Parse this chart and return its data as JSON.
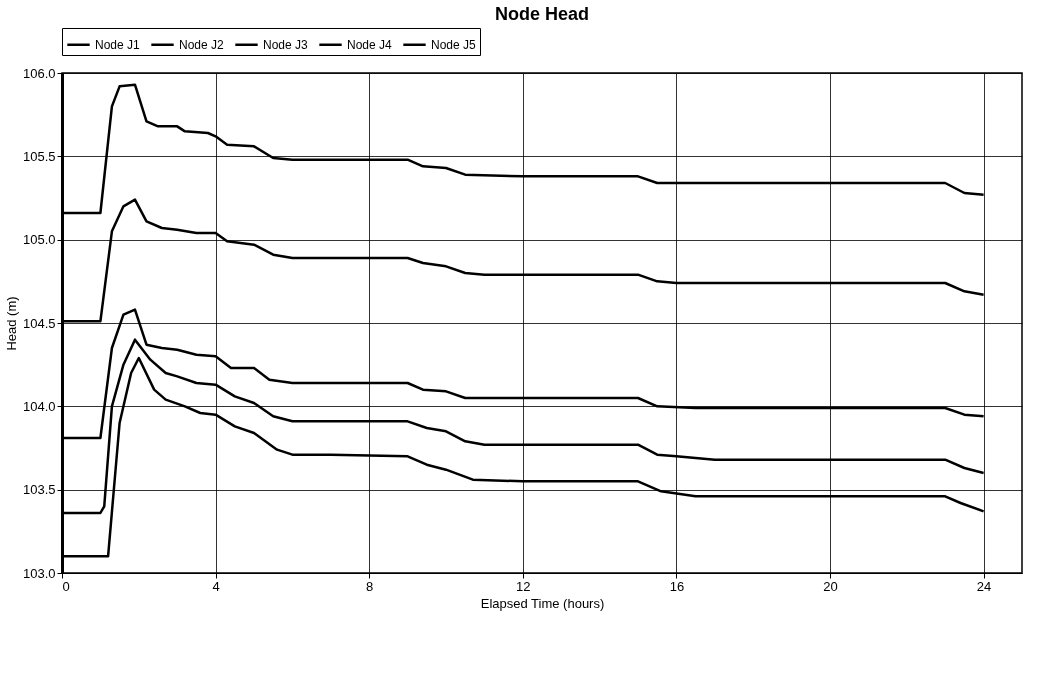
{
  "chart_data": {
    "type": "line",
    "title": "Node Head",
    "xlabel": "Elapsed Time (hours)",
    "ylabel": "Head (m)",
    "xlim": [
      0,
      25
    ],
    "xticks": [
      0,
      4,
      8,
      12,
      16,
      20,
      24
    ],
    "ylim": [
      103,
      106
    ],
    "yticks": [
      {
        "value": 103,
        "label": "103.0"
      },
      103.5,
      {
        "value": 104,
        "label": "104.0"
      },
      104.5,
      {
        "value": 105,
        "label": "105.0"
      },
      105.5,
      {
        "value": 106,
        "label": "106.0"
      }
    ],
    "grid": true,
    "legend": "top",
    "marker": "none",
    "line_style": "solid",
    "series": [
      {
        "name": "Node J1",
        "color": "#000000",
        "x": [
          0,
          1.0,
          1.3,
          1.5,
          1.9,
          2.2,
          2.5,
          3.0,
          3.2,
          3.8,
          4.0,
          4.3,
          5.0,
          5.5,
          6,
          9.0,
          9.4,
          10.0,
          10.5,
          12,
          15.0,
          15.5,
          23.0,
          23.5,
          24
        ],
        "values": [
          105.16,
          105.16,
          105.8,
          105.92,
          105.93,
          105.71,
          105.68,
          105.68,
          105.65,
          105.64,
          105.62,
          105.57,
          105.56,
          105.49,
          105.48,
          105.48,
          105.44,
          105.43,
          105.39,
          105.38,
          105.38,
          105.34,
          105.34,
          105.28,
          105.27
        ]
      },
      {
        "name": "Node J2",
        "color": "#000000",
        "x": [
          0,
          1.0,
          1.3,
          1.6,
          1.9,
          2.2,
          2.6,
          3.0,
          3.5,
          4.0,
          4.3,
          5.0,
          5.5,
          6.0,
          9.0,
          9.4,
          10.0,
          10.5,
          11,
          15.0,
          15.5,
          16,
          23.0,
          23.5,
          24
        ],
        "values": [
          104.51,
          104.51,
          105.05,
          105.2,
          105.24,
          105.11,
          105.07,
          105.06,
          105.04,
          105.04,
          104.99,
          104.97,
          104.91,
          104.89,
          104.89,
          104.86,
          104.84,
          104.8,
          104.79,
          104.79,
          104.75,
          104.74,
          104.74,
          104.69,
          104.67
        ]
      },
      {
        "name": "Node J3",
        "color": "#000000",
        "x": [
          0,
          1.0,
          1.3,
          1.6,
          1.9,
          2.2,
          2.6,
          3.0,
          3.5,
          4.0,
          4.4,
          5.0,
          5.4,
          6,
          9.0,
          9.4,
          10.0,
          10.5,
          15.0,
          15.5,
          16.5,
          23.0,
          23.5,
          24
        ],
        "values": [
          103.81,
          103.81,
          104.35,
          104.55,
          104.58,
          104.37,
          104.35,
          104.34,
          104.31,
          104.3,
          104.23,
          104.23,
          104.16,
          104.14,
          104.14,
          104.1,
          104.09,
          104.05,
          104.05,
          104.0,
          103.99,
          103.99,
          103.95,
          103.94
        ]
      },
      {
        "name": "Node J4",
        "color": "#000000",
        "x": [
          0,
          1.0,
          1.1,
          1.3,
          1.6,
          1.9,
          2.3,
          2.7,
          3.0,
          3.5,
          4.0,
          4.5,
          5.0,
          5.5,
          6.0,
          9.0,
          9.5,
          10.0,
          10.5,
          11,
          15.0,
          15.5,
          16,
          17,
          23.0,
          23.5,
          24
        ],
        "values": [
          103.36,
          103.36,
          103.4,
          104.0,
          104.25,
          104.4,
          104.28,
          104.2,
          104.18,
          104.14,
          104.13,
          104.06,
          104.02,
          103.94,
          103.91,
          103.91,
          103.87,
          103.85,
          103.79,
          103.77,
          103.77,
          103.71,
          103.7,
          103.68,
          103.68,
          103.63,
          103.6
        ]
      },
      {
        "name": "Node J5",
        "color": "#000000",
        "x": [
          0,
          1.2,
          1.5,
          1.8,
          2.0,
          2.4,
          2.7,
          3.2,
          3.6,
          4.0,
          4.5,
          5.0,
          5.6,
          6.0,
          7,
          9.0,
          9.5,
          10.0,
          10.7,
          12,
          15.0,
          15.6,
          16.5,
          23.0,
          23.4,
          24
        ],
        "values": [
          103.1,
          103.1,
          103.9,
          104.2,
          104.29,
          104.1,
          104.04,
          104.0,
          103.96,
          103.95,
          103.88,
          103.84,
          103.74,
          103.71,
          103.71,
          103.7,
          103.65,
          103.62,
          103.56,
          103.55,
          103.55,
          103.49,
          103.46,
          103.46,
          103.42,
          103.37
        ]
      }
    ]
  }
}
